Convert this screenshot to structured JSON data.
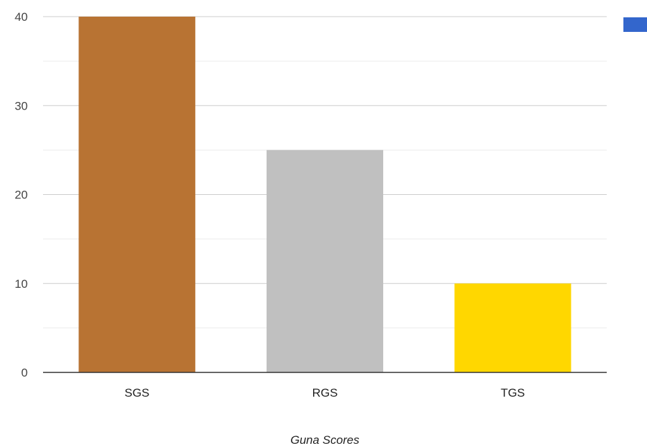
{
  "chart_data": {
    "type": "bar",
    "categories": [
      "SGS",
      "RGS",
      "TGS"
    ],
    "values": [
      40,
      25,
      10
    ],
    "bar_colors": [
      "#b87333",
      "#c0c0c0",
      "#ffd700"
    ],
    "xlabel": "Guna Scores",
    "ylabel": "",
    "ylim": [
      0,
      40
    ],
    "yticks": [
      0,
      10,
      20,
      30,
      40
    ],
    "grid": true,
    "legend": {
      "placement": "top-right",
      "swatch_color": "#3366cc",
      "label": ""
    }
  }
}
